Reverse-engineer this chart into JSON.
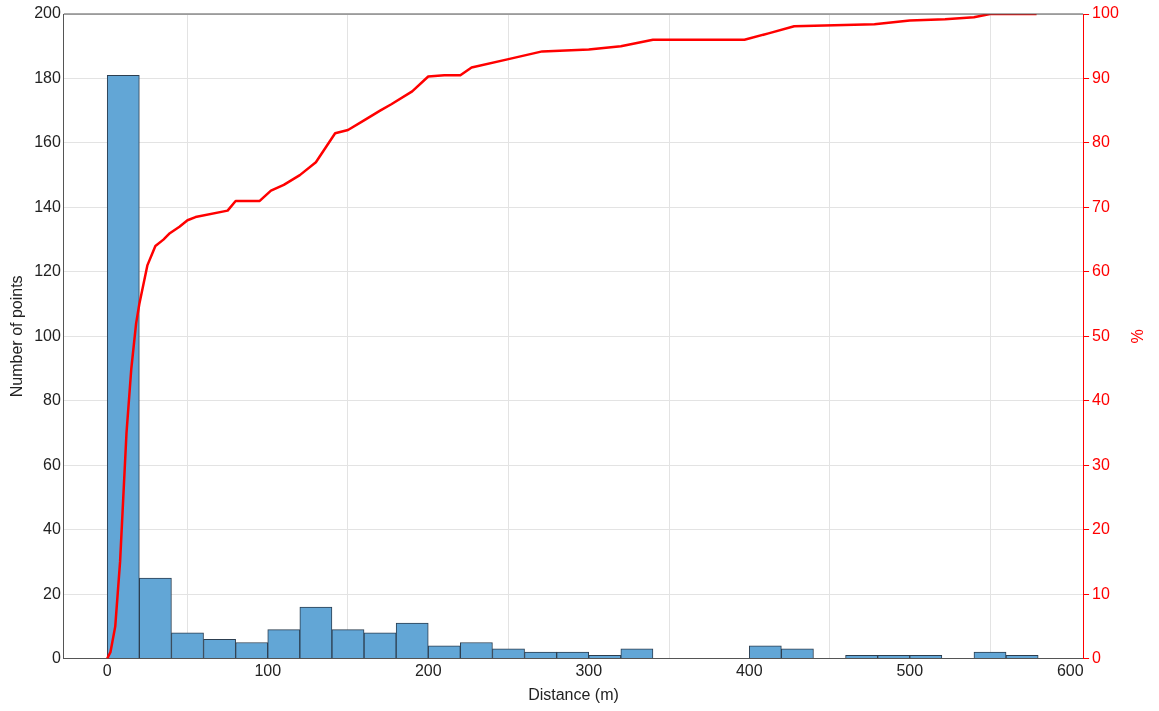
{
  "chart_data": {
    "type": "histogram",
    "xlabel": "Distance (m)",
    "ylabel": "Number of points",
    "y2label": "%",
    "xlim": [
      -27,
      608
    ],
    "xticks": [
      0,
      100,
      200,
      300,
      400,
      500,
      600
    ],
    "ylim": [
      0,
      200
    ],
    "yticks": [
      0,
      20,
      40,
      60,
      80,
      100,
      120,
      140,
      160,
      180,
      200
    ],
    "y2lim": [
      0,
      100
    ],
    "y2ticks": [
      0,
      10,
      20,
      30,
      40,
      50,
      60,
      70,
      80,
      90,
      100
    ],
    "grid": true,
    "legend": false,
    "series": [
      {
        "color": "#62a6d6",
        "bins": [
          0,
          20,
          40,
          60,
          80,
          100,
          120,
          140,
          160,
          180,
          200,
          220,
          240,
          260,
          280,
          300,
          320,
          340,
          360,
          380,
          400,
          420,
          440,
          460,
          480,
          500,
          520,
          540,
          560,
          580
        ],
        "values": [
          181,
          25,
          8,
          6,
          5,
          9,
          16,
          9,
          8,
          11,
          4,
          5,
          3,
          2,
          2,
          1,
          3,
          0,
          0,
          0,
          4,
          3,
          0,
          1,
          1,
          1,
          0,
          2,
          1
        ]
      },
      {
        "type": "line",
        "axis": "y2",
        "color": "#ff0000",
        "x": [
          0,
          2,
          5,
          8,
          10,
          12,
          15,
          18,
          20,
          25,
          30,
          35,
          39,
          45,
          50,
          55,
          75,
          80,
          95,
          102,
          110,
          120,
          130,
          142,
          150,
          160,
          170,
          177,
          190,
          200,
          210,
          220,
          227,
          250,
          271,
          300,
          320,
          340,
          397,
          412,
          428,
          478,
          500,
          522,
          540,
          550,
          579
        ],
        "values": [
          0,
          1,
          5,
          15,
          25,
          35,
          45,
          52,
          55,
          61,
          64,
          65,
          66,
          67,
          68,
          68.5,
          69.5,
          71,
          71,
          72.6,
          73.5,
          75,
          77,
          81.5,
          82,
          83.5,
          85,
          86,
          88,
          90.3,
          90.5,
          90.5,
          91.7,
          93,
          94.2,
          94.5,
          95,
          96,
          96,
          97,
          98.1,
          98.4,
          99,
          99.2,
          99.5,
          100,
          100
        ]
      }
    ]
  }
}
